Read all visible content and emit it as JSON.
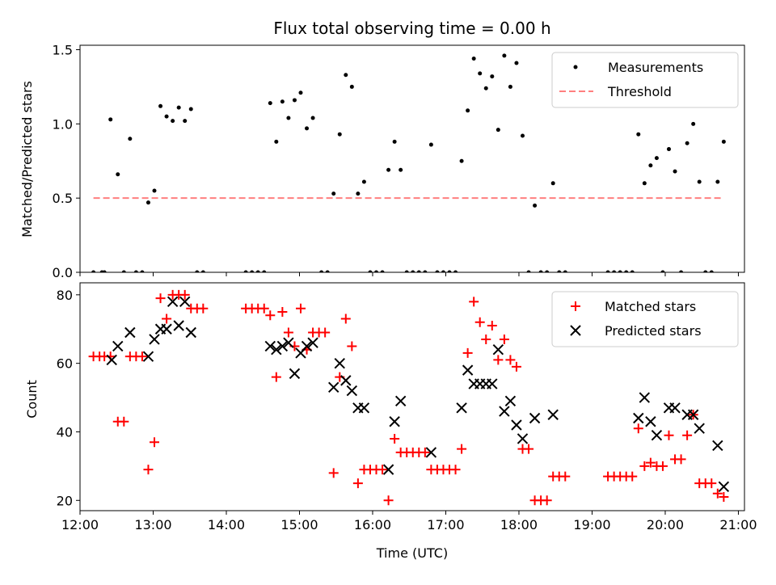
{
  "chart_data": [
    {
      "type": "scatter",
      "title": "Flux total observing time = 0.00 h",
      "ylabel": "Matched/Predicted stars",
      "xlabel": "",
      "xlim": [
        "12:00",
        "21:05"
      ],
      "ylim": [
        0,
        1.53
      ],
      "yticks": [
        "0.0",
        "0.5",
        "1.0",
        "1.5"
      ],
      "grid": false,
      "legend": "top-right",
      "series": [
        {
          "name": "Measurements",
          "marker": "dot",
          "color": "#000000",
          "points": [
            [
              "12:11",
              0
            ],
            [
              "12:18",
              0
            ],
            [
              "12:20",
              0
            ],
            [
              "12:25",
              1.03
            ],
            [
              "12:31",
              0.66
            ],
            [
              "12:36",
              0
            ],
            [
              "12:41",
              0.9
            ],
            [
              "12:46",
              0
            ],
            [
              "12:51",
              0
            ],
            [
              "12:56",
              0.47
            ],
            [
              "13:01",
              0.55
            ],
            [
              "13:06",
              1.12
            ],
            [
              "13:11",
              1.05
            ],
            [
              "13:16",
              1.02
            ],
            [
              "13:21",
              1.11
            ],
            [
              "13:26",
              1.02
            ],
            [
              "13:31",
              1.1
            ],
            [
              "13:36",
              0
            ],
            [
              "13:41",
              0
            ],
            [
              "14:16",
              0
            ],
            [
              "14:21",
              0
            ],
            [
              "14:26",
              0
            ],
            [
              "14:31",
              0
            ],
            [
              "14:36",
              1.14
            ],
            [
              "14:41",
              0.88
            ],
            [
              "14:46",
              1.15
            ],
            [
              "14:51",
              1.04
            ],
            [
              "14:56",
              1.16
            ],
            [
              "15:01",
              1.21
            ],
            [
              "15:06",
              0.97
            ],
            [
              "15:11",
              1.04
            ],
            [
              "15:18",
              0
            ],
            [
              "15:23",
              0
            ],
            [
              "15:28",
              0.53
            ],
            [
              "15:33",
              0.93
            ],
            [
              "15:38",
              1.33
            ],
            [
              "15:43",
              1.25
            ],
            [
              "15:48",
              0.53
            ],
            [
              "15:53",
              0.61
            ],
            [
              "15:58",
              0
            ],
            [
              "16:03",
              0
            ],
            [
              "16:08",
              0
            ],
            [
              "16:13",
              0.69
            ],
            [
              "16:18",
              0.88
            ],
            [
              "16:23",
              0.69
            ],
            [
              "16:28",
              0
            ],
            [
              "16:33",
              0
            ],
            [
              "16:38",
              0
            ],
            [
              "16:43",
              0
            ],
            [
              "16:48",
              0.86
            ],
            [
              "16:53",
              0
            ],
            [
              "16:58",
              0
            ],
            [
              "17:03",
              0
            ],
            [
              "17:08",
              0
            ],
            [
              "17:13",
              0.75
            ],
            [
              "17:18",
              1.09
            ],
            [
              "17:23",
              1.44
            ],
            [
              "17:28",
              1.34
            ],
            [
              "17:33",
              1.24
            ],
            [
              "17:38",
              1.32
            ],
            [
              "17:43",
              0.96
            ],
            [
              "17:48",
              1.46
            ],
            [
              "17:53",
              1.25
            ],
            [
              "17:58",
              1.41
            ],
            [
              "18:03",
              0.92
            ],
            [
              "18:08",
              0
            ],
            [
              "18:13",
              0.45
            ],
            [
              "18:18",
              0
            ],
            [
              "18:23",
              0
            ],
            [
              "18:28",
              0.6
            ],
            [
              "18:33",
              0
            ],
            [
              "18:38",
              0
            ],
            [
              "19:13",
              0
            ],
            [
              "19:18",
              0
            ],
            [
              "19:23",
              0
            ],
            [
              "19:28",
              0
            ],
            [
              "19:33",
              0
            ],
            [
              "19:38",
              0.93
            ],
            [
              "19:43",
              0.6
            ],
            [
              "19:48",
              0.72
            ],
            [
              "19:53",
              0.77
            ],
            [
              "19:58",
              0
            ],
            [
              "20:03",
              0.83
            ],
            [
              "20:08",
              0.68
            ],
            [
              "20:13",
              0
            ],
            [
              "20:18",
              0.87
            ],
            [
              "20:23",
              1.0
            ],
            [
              "20:28",
              0.61
            ],
            [
              "20:33",
              0
            ],
            [
              "20:38",
              0
            ],
            [
              "20:43",
              0.61
            ],
            [
              "20:48",
              0.88
            ]
          ]
        },
        {
          "name": "Threshold",
          "marker": "dashed-line",
          "color": "#ff7f7f",
          "points": [
            [
              "12:11",
              0.5
            ],
            [
              "20:48",
              0.5
            ]
          ]
        }
      ]
    },
    {
      "type": "scatter",
      "title": "",
      "ylabel": "Count",
      "xlabel": "Time (UTC)",
      "xlim": [
        "12:00",
        "21:05"
      ],
      "ylim": [
        17,
        83.5
      ],
      "yticks": [
        "20",
        "40",
        "60",
        "80"
      ],
      "xticks": [
        "12:00",
        "13:00",
        "14:00",
        "15:00",
        "16:00",
        "17:00",
        "18:00",
        "19:00",
        "20:00",
        "21:00"
      ],
      "grid": false,
      "legend": "top-right",
      "series": [
        {
          "name": "Matched stars",
          "marker": "plus",
          "color": "#ff0000",
          "points": [
            [
              "12:11",
              62
            ],
            [
              "12:16",
              62
            ],
            [
              "12:20",
              62
            ],
            [
              "12:25",
              62
            ],
            [
              "12:31",
              43
            ],
            [
              "12:36",
              43
            ],
            [
              "12:41",
              62
            ],
            [
              "12:46",
              62
            ],
            [
              "12:51",
              62
            ],
            [
              "12:56",
              29
            ],
            [
              "13:01",
              37
            ],
            [
              "13:06",
              79
            ],
            [
              "13:11",
              73
            ],
            [
              "13:16",
              80
            ],
            [
              "13:21",
              80
            ],
            [
              "13:26",
              80
            ],
            [
              "13:31",
              76
            ],
            [
              "13:36",
              76
            ],
            [
              "13:41",
              76
            ],
            [
              "14:16",
              76
            ],
            [
              "14:21",
              76
            ],
            [
              "14:26",
              76
            ],
            [
              "14:31",
              76
            ],
            [
              "14:36",
              74
            ],
            [
              "14:41",
              56
            ],
            [
              "14:46",
              75
            ],
            [
              "14:51",
              69
            ],
            [
              "14:56",
              65
            ],
            [
              "15:01",
              76
            ],
            [
              "15:06",
              64
            ],
            [
              "15:11",
              69
            ],
            [
              "15:16",
              69
            ],
            [
              "15:21",
              69
            ],
            [
              "15:28",
              28
            ],
            [
              "15:33",
              56
            ],
            [
              "15:38",
              73
            ],
            [
              "15:43",
              65
            ],
            [
              "15:48",
              25
            ],
            [
              "15:53",
              29
            ],
            [
              "15:58",
              29
            ],
            [
              "16:03",
              29
            ],
            [
              "16:08",
              29
            ],
            [
              "16:13",
              20
            ],
            [
              "16:18",
              38
            ],
            [
              "16:23",
              34
            ],
            [
              "16:28",
              34
            ],
            [
              "16:33",
              34
            ],
            [
              "16:38",
              34
            ],
            [
              "16:43",
              34
            ],
            [
              "16:48",
              29
            ],
            [
              "16:53",
              29
            ],
            [
              "16:58",
              29
            ],
            [
              "17:03",
              29
            ],
            [
              "17:08",
              29
            ],
            [
              "17:13",
              35
            ],
            [
              "17:18",
              63
            ],
            [
              "17:23",
              78
            ],
            [
              "17:28",
              72
            ],
            [
              "17:33",
              67
            ],
            [
              "17:38",
              71
            ],
            [
              "17:43",
              61
            ],
            [
              "17:48",
              67
            ],
            [
              "17:53",
              61
            ],
            [
              "17:58",
              59
            ],
            [
              "18:03",
              35
            ],
            [
              "18:08",
              35
            ],
            [
              "18:13",
              20
            ],
            [
              "18:18",
              20
            ],
            [
              "18:23",
              20
            ],
            [
              "18:28",
              27
            ],
            [
              "18:33",
              27
            ],
            [
              "18:38",
              27
            ],
            [
              "19:13",
              27
            ],
            [
              "19:18",
              27
            ],
            [
              "19:23",
              27
            ],
            [
              "19:28",
              27
            ],
            [
              "19:33",
              27
            ],
            [
              "19:38",
              41
            ],
            [
              "19:43",
              30
            ],
            [
              "19:48",
              31
            ],
            [
              "19:53",
              30
            ],
            [
              "19:58",
              30
            ],
            [
              "20:03",
              39
            ],
            [
              "20:08",
              32
            ],
            [
              "20:13",
              32
            ],
            [
              "20:18",
              39
            ],
            [
              "20:23",
              45
            ],
            [
              "20:28",
              25
            ],
            [
              "20:33",
              25
            ],
            [
              "20:38",
              25
            ],
            [
              "20:43",
              22
            ],
            [
              "20:48",
              21
            ]
          ]
        },
        {
          "name": "Predicted stars",
          "marker": "x",
          "color": "#000000",
          "points": [
            [
              "12:26",
              61
            ],
            [
              "12:31",
              65
            ],
            [
              "12:41",
              69
            ],
            [
              "12:56",
              62
            ],
            [
              "13:01",
              67
            ],
            [
              "13:06",
              70
            ],
            [
              "13:11",
              70
            ],
            [
              "13:16",
              78
            ],
            [
              "13:21",
              71
            ],
            [
              "13:26",
              78
            ],
            [
              "13:31",
              69
            ],
            [
              "14:36",
              65
            ],
            [
              "14:41",
              64
            ],
            [
              "14:46",
              65
            ],
            [
              "14:51",
              66
            ],
            [
              "14:56",
              57
            ],
            [
              "15:01",
              63
            ],
            [
              "15:06",
              65
            ],
            [
              "15:11",
              66
            ],
            [
              "15:28",
              53
            ],
            [
              "15:33",
              60
            ],
            [
              "15:38",
              55
            ],
            [
              "15:43",
              52
            ],
            [
              "15:48",
              47
            ],
            [
              "15:53",
              47
            ],
            [
              "16:13",
              29
            ],
            [
              "16:18",
              43
            ],
            [
              "16:23",
              49
            ],
            [
              "16:48",
              34
            ],
            [
              "17:13",
              47
            ],
            [
              "17:18",
              58
            ],
            [
              "17:23",
              54
            ],
            [
              "17:28",
              54
            ],
            [
              "17:33",
              54
            ],
            [
              "17:38",
              54
            ],
            [
              "17:43",
              64
            ],
            [
              "17:48",
              46
            ],
            [
              "17:53",
              49
            ],
            [
              "17:58",
              42
            ],
            [
              "18:03",
              38
            ],
            [
              "18:13",
              44
            ],
            [
              "18:28",
              45
            ],
            [
              "19:38",
              44
            ],
            [
              "19:43",
              50
            ],
            [
              "19:48",
              43
            ],
            [
              "19:53",
              39
            ],
            [
              "20:03",
              47
            ],
            [
              "20:08",
              47
            ],
            [
              "20:18",
              45
            ],
            [
              "20:23",
              45
            ],
            [
              "20:28",
              41
            ],
            [
              "20:43",
              36
            ],
            [
              "20:48",
              24
            ]
          ]
        }
      ]
    }
  ]
}
